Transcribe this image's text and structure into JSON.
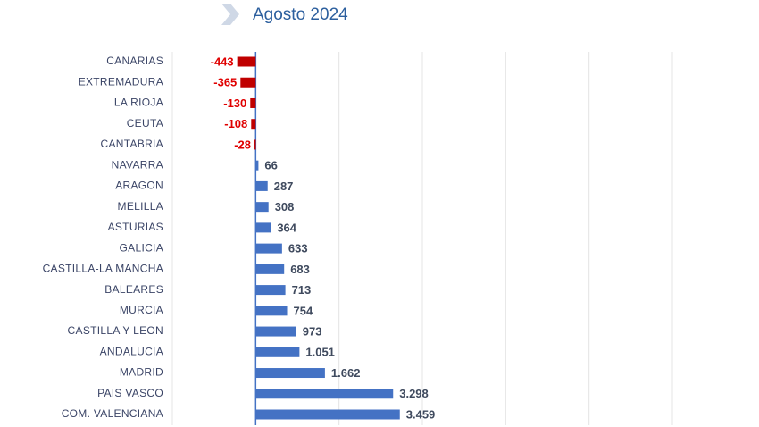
{
  "chart_data": {
    "type": "bar",
    "orientation": "horizontal",
    "title": "Agosto 2024",
    "categories": [
      "CANARIAS",
      "EXTREMADURA",
      "LA RIOJA",
      "CEUTA",
      "CANTABRIA",
      "NAVARRA",
      "ARAGON",
      "MELILLA",
      "ASTURIAS",
      "GALICIA",
      "CASTILLA-LA MANCHA",
      "BALEARES",
      "MURCIA",
      "CASTILLA Y LEON",
      "ANDALUCIA",
      "MADRID",
      "PAIS VASCO",
      "COM. VALENCIANA"
    ],
    "values": [
      -443,
      -365,
      -130,
      -108,
      -28,
      66,
      287,
      308,
      364,
      633,
      683,
      713,
      754,
      973,
      1051,
      1662,
      3298,
      3459
    ],
    "value_labels": [
      "-443",
      "-365",
      "-130",
      "-108",
      "-28",
      "66",
      "287",
      "308",
      "364",
      "633",
      "683",
      "713",
      "754",
      "973",
      "1.051",
      "1.662",
      "3.298",
      "3.459"
    ],
    "color": "#4472c4",
    "negative_color": "#c00000",
    "xlim": [
      -2000,
      10000
    ],
    "xticks": [
      -2000,
      0,
      2000,
      4000,
      6000,
      8000,
      10000
    ],
    "grid": true
  }
}
